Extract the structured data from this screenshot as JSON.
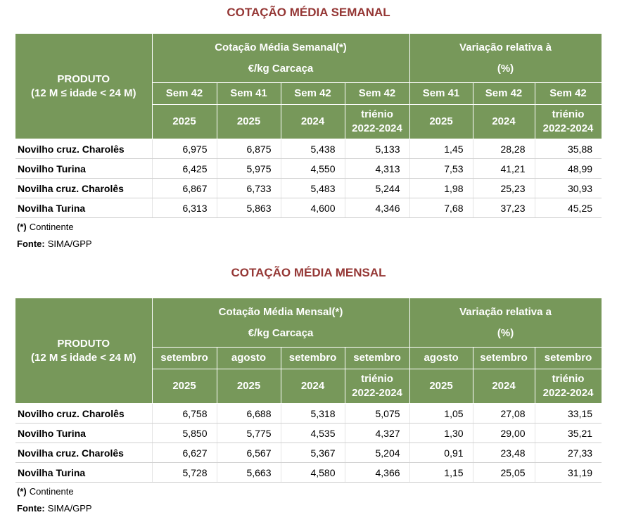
{
  "tables": [
    {
      "title": "COTAÇÃO MÉDIA SEMANAL",
      "product_header": [
        "PRODUTO",
        "(12 M ≤ idade < 24 M)"
      ],
      "group_headers": [
        [
          "Cotação Média Semanal(*)",
          "€/kg Carcaça"
        ],
        [
          "Variação relativa  à",
          "(%)"
        ]
      ],
      "period_headers": [
        "Sem 42",
        "Sem 41",
        "Sem 42",
        "Sem 42",
        "Sem 41",
        "Sem 42",
        "Sem 42"
      ],
      "year_headers": [
        [
          "2025"
        ],
        [
          "2025"
        ],
        [
          "2024"
        ],
        [
          "triénio",
          "2022-2024"
        ],
        [
          "2025"
        ],
        [
          "2024"
        ],
        [
          "triénio",
          "2022-2024"
        ]
      ],
      "rows": [
        {
          "product": "Novilho  cruz. Charolês",
          "values": [
            "6,975",
            "6,875",
            "5,438",
            "5,133",
            "1,45",
            "28,28",
            "35,88"
          ]
        },
        {
          "product": "Novilho Turina",
          "values": [
            "6,425",
            "5,975",
            "4,550",
            "4,313",
            "7,53",
            "41,21",
            "48,99"
          ]
        },
        {
          "product": "Novilha cruz. Charolês",
          "values": [
            "6,867",
            "6,733",
            "5,483",
            "5,244",
            "1,98",
            "25,23",
            "30,93"
          ]
        },
        {
          "product": "Novilha Turina",
          "values": [
            "6,313",
            "5,863",
            "4,600",
            "4,346",
            "7,68",
            "37,23",
            "45,25"
          ]
        }
      ],
      "footnote": [
        "(*)",
        "Continente"
      ],
      "source": [
        "Fonte:",
        "SIMA/GPP"
      ]
    },
    {
      "title": "COTAÇÃO MÉDIA MENSAL",
      "product_header": [
        "PRODUTO",
        "(12 M ≤ idade < 24 M)"
      ],
      "group_headers": [
        [
          "Cotação Média Mensal(*)",
          "€/kg Carcaça"
        ],
        [
          "Variação relativa a",
          "(%)"
        ]
      ],
      "period_headers": [
        "setembro",
        "agosto",
        "setembro",
        "setembro",
        "agosto",
        "setembro",
        "setembro"
      ],
      "year_headers": [
        [
          "2025"
        ],
        [
          "2025"
        ],
        [
          "2024"
        ],
        [
          "triénio",
          "2022-2024"
        ],
        [
          "2025"
        ],
        [
          "2024"
        ],
        [
          "triénio",
          "2022-2024"
        ]
      ],
      "rows": [
        {
          "product": "Novilho  cruz. Charolês",
          "values": [
            "6,758",
            "6,688",
            "5,318",
            "5,075",
            "1,05",
            "27,08",
            "33,15"
          ]
        },
        {
          "product": "Novilho Turina",
          "values": [
            "5,850",
            "5,775",
            "4,535",
            "4,327",
            "1,30",
            "29,00",
            "35,21"
          ]
        },
        {
          "product": "Novilha cruz. Charolês",
          "values": [
            "6,627",
            "6,567",
            "5,367",
            "5,204",
            "0,91",
            "23,48",
            "27,33"
          ]
        },
        {
          "product": "Novilha Turina",
          "values": [
            "5,728",
            "5,663",
            "4,580",
            "4,366",
            "1,15",
            "25,05",
            "31,19"
          ]
        }
      ],
      "footnote": [
        "(*)",
        "Continente"
      ],
      "source": [
        "Fonte:",
        "SIMA/GPP"
      ]
    }
  ]
}
